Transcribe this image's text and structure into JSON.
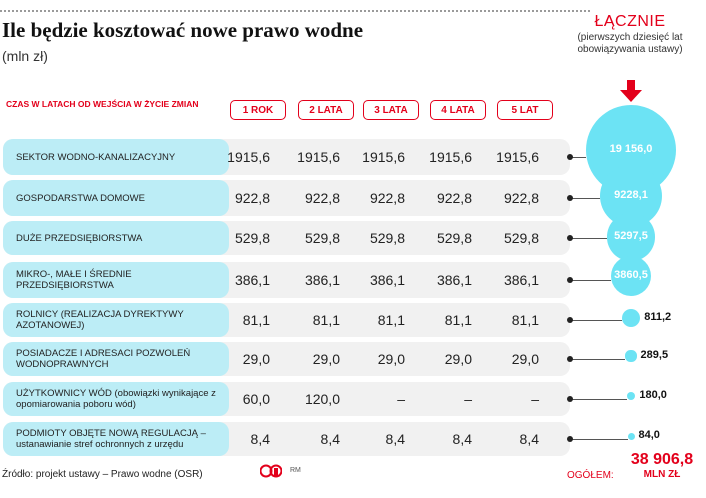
{
  "title": "Ile będzie kosztować nowe prawo wodne",
  "subtitle": "(mln zł)",
  "header_label": "CZAS W LATACH OD WEJŚCIA W ŻYCIE ZMIAN",
  "total_header": {
    "title": "ŁĄCZNIE",
    "subtitle": "(pierwszych dziesięć lat obowiązywania ustawy)"
  },
  "colors": {
    "accent": "#e3001b",
    "bubble": "#6ce3f4",
    "label_bg": "#bcedf6",
    "row_bg": "#f1f1f1"
  },
  "chart_data": {
    "type": "table",
    "title": "Ile będzie kosztować nowe prawo wodne",
    "unit": "(mln zł)",
    "columns": [
      "1 ROK",
      "2 LATA",
      "3 LATA",
      "4 LATA",
      "5 LAT"
    ],
    "rows": [
      {
        "label": "SEKTOR WODNO-KANALIZACYJNY",
        "values": [
          "1915,6",
          "1915,6",
          "1915,6",
          "1915,6",
          "1915,6"
        ],
        "total": "19 156,0",
        "total_num": 19156.0
      },
      {
        "label": "GOSPODARSTWA DOMOWE",
        "values": [
          "922,8",
          "922,8",
          "922,8",
          "922,8",
          "922,8"
        ],
        "total": "9228,1",
        "total_num": 9228.1
      },
      {
        "label": "DUŻE PRZEDSIĘBIORSTWA",
        "values": [
          "529,8",
          "529,8",
          "529,8",
          "529,8",
          "529,8"
        ],
        "total": "5297,5",
        "total_num": 5297.5
      },
      {
        "label": "MIKRO-, MAŁE I ŚREDNIE PRZEDSIĘBIORSTWA",
        "values": [
          "386,1",
          "386,1",
          "386,1",
          "386,1",
          "386,1"
        ],
        "total": "3860,5",
        "total_num": 3860.5
      },
      {
        "label": "ROLNICY (REALIZACJA DYREKTYWY AZOTANOWEJ)",
        "values": [
          "81,1",
          "81,1",
          "81,1",
          "81,1",
          "81,1"
        ],
        "total": "811,2",
        "total_num": 811.2
      },
      {
        "label": "POSIADACZE I ADRESACI POZWOLEŃ WODNOPRAWNYCH",
        "values": [
          "29,0",
          "29,0",
          "29,0",
          "29,0",
          "29,0"
        ],
        "total": "289,5",
        "total_num": 289.5
      },
      {
        "label": "UŻYTKOWNICY WÓD (obowiązki wynikające z opomiarowania poboru wód)",
        "values": [
          "60,0",
          "120,0",
          "–",
          "–",
          "–"
        ],
        "total": "180,0",
        "total_num": 180.0
      },
      {
        "label": "PODMIOTY OBJĘTE NOWĄ REGULACJĄ – ustanawianie stref ochronnych z urzędu",
        "values": [
          "8,4",
          "8,4",
          "8,4",
          "8,4",
          "8,4"
        ],
        "total": "84,0",
        "total_num": 84.0
      }
    ],
    "grand_total_label": "OGÓŁEM:",
    "grand_total": "38 906,8",
    "grand_total_unit": "MLN ZŁ"
  },
  "source": "Źródło: projekt ustawy – Prawo wodne (OSR)",
  "logo_text": "RM"
}
